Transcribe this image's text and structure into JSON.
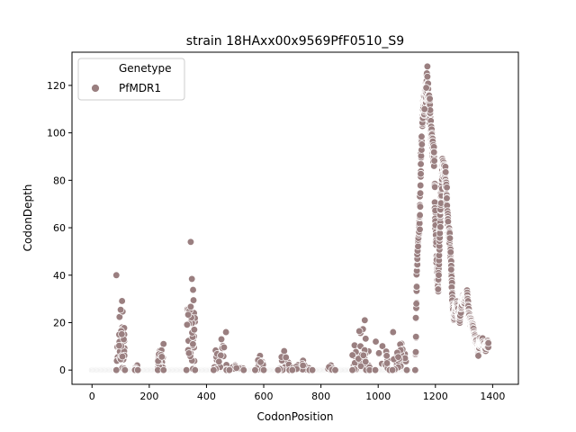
{
  "chart_data": {
    "type": "scatter",
    "title": "strain 18HAxx00x9569PfF0510_S9",
    "xlabel": "CodonPosition",
    "ylabel": "CodonDepth",
    "xlim": [
      -70,
      1490
    ],
    "ylim": [
      -6,
      134
    ],
    "xticks": [
      0,
      200,
      400,
      600,
      800,
      1000,
      1200,
      1400
    ],
    "yticks": [
      0,
      20,
      40,
      60,
      80,
      100,
      120
    ],
    "grid": false,
    "legend": {
      "title": "Genetype",
      "placement": "top-left",
      "entries": [
        "PfMDR1"
      ]
    },
    "series": [
      {
        "name": "PfMDR1",
        "color": "#9a7f80",
        "clusters": [
          {
            "x_start": 85,
            "x_end": 115,
            "y_min": 0,
            "y_max": 40,
            "n": 40
          },
          {
            "x_start": 150,
            "x_end": 160,
            "y_min": 0,
            "y_max": 2,
            "n": 4
          },
          {
            "x_start": 230,
            "x_end": 250,
            "y_min": 0,
            "y_max": 11,
            "n": 24
          },
          {
            "x_start": 330,
            "x_end": 360,
            "y_min": 0,
            "y_max": 54,
            "n": 34
          },
          {
            "x_start": 425,
            "x_end": 470,
            "y_min": 0,
            "y_max": 16,
            "n": 24
          },
          {
            "x_start": 480,
            "x_end": 530,
            "y_min": 0,
            "y_max": 2,
            "n": 8
          },
          {
            "x_start": 570,
            "x_end": 600,
            "y_min": 0,
            "y_max": 6,
            "n": 14
          },
          {
            "x_start": 650,
            "x_end": 690,
            "y_min": 0,
            "y_max": 8,
            "n": 16
          },
          {
            "x_start": 700,
            "x_end": 760,
            "y_min": 0,
            "y_max": 4,
            "n": 12
          },
          {
            "x_start": 770,
            "x_end": 850,
            "y_min": 0,
            "y_max": 2,
            "n": 10
          },
          {
            "x_start": 910,
            "x_end": 970,
            "y_min": 0,
            "y_max": 21,
            "n": 34
          },
          {
            "x_start": 990,
            "x_end": 1040,
            "y_min": 0,
            "y_max": 12,
            "n": 16
          },
          {
            "x_start": 1050,
            "x_end": 1100,
            "y_min": 0,
            "y_max": 16,
            "n": 26
          }
        ],
        "profile": [
          [
            1130,
            0
          ],
          [
            1135,
            41
          ],
          [
            1140,
            57
          ],
          [
            1145,
            62
          ],
          [
            1150,
            90
          ],
          [
            1155,
            108
          ],
          [
            1160,
            112
          ],
          [
            1165,
            115
          ],
          [
            1170,
            121
          ],
          [
            1175,
            115
          ],
          [
            1180,
            110
          ],
          [
            1185,
            100
          ],
          [
            1190,
            94
          ],
          [
            1195,
            90
          ],
          [
            1200,
            62
          ],
          [
            1205,
            42
          ],
          [
            1210,
            33
          ],
          [
            1215,
            57
          ],
          [
            1220,
            73
          ],
          [
            1225,
            86
          ],
          [
            1230,
            84
          ],
          [
            1235,
            82
          ],
          [
            1240,
            72
          ],
          [
            1245,
            60
          ],
          [
            1250,
            55
          ],
          [
            1255,
            45
          ],
          [
            1260,
            27
          ],
          [
            1265,
            22
          ],
          [
            1270,
            26
          ],
          [
            1275,
            28
          ],
          [
            1280,
            24
          ],
          [
            1285,
            21
          ],
          [
            1290,
            27
          ],
          [
            1295,
            30
          ],
          [
            1300,
            29
          ],
          [
            1305,
            31
          ],
          [
            1310,
            33
          ],
          [
            1315,
            25
          ],
          [
            1320,
            21
          ],
          [
            1325,
            20
          ],
          [
            1330,
            18
          ],
          [
            1335,
            15
          ],
          [
            1340,
            13
          ],
          [
            1345,
            10
          ],
          [
            1350,
            8
          ],
          [
            1355,
            12
          ],
          [
            1360,
            11
          ],
          [
            1365,
            12
          ],
          [
            1370,
            10
          ],
          [
            1375,
            9
          ],
          [
            1380,
            11
          ],
          [
            1385,
            11
          ]
        ],
        "highlights": [
          [
            1172,
            128
          ],
          [
            1168,
            119
          ],
          [
            1162,
            110
          ],
          [
            1350,
            6
          ]
        ]
      }
    ]
  }
}
